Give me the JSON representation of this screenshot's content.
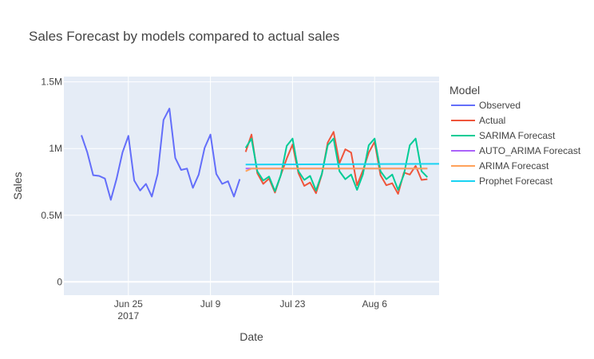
{
  "chart_data": {
    "type": "line",
    "title": "Sales Forecast by models compared to actual sales",
    "xlabel": "Date",
    "ylabel": "Sales",
    "legend_title": "Model",
    "legend_position": "right",
    "grid": true,
    "colors": {
      "plot_bg": "#E5ECF6",
      "grid": "#ffffff",
      "text": "#444444"
    },
    "x_range": [
      "2017-06-14",
      "2017-08-17"
    ],
    "y_range": [
      -100000,
      1540000
    ],
    "x_ticks": [
      {
        "date": "2017-06-25",
        "label": "Jun 25",
        "sub": "2017"
      },
      {
        "date": "2017-07-09",
        "label": "Jul 9",
        "sub": ""
      },
      {
        "date": "2017-07-23",
        "label": "Jul 23",
        "sub": ""
      },
      {
        "date": "2017-08-06",
        "label": "Aug 6",
        "sub": ""
      }
    ],
    "y_ticks": [
      {
        "value": 0,
        "label": "0"
      },
      {
        "value": 500000,
        "label": "0.5M"
      },
      {
        "value": 1000000,
        "label": "1M"
      },
      {
        "value": 1500000,
        "label": "1.5M"
      }
    ],
    "series": [
      {
        "name": "Observed",
        "color": "#636EFA",
        "start": "2017-06-17",
        "values": [
          1100000,
          970000,
          800000,
          795000,
          775000,
          615000,
          775000,
          970000,
          1095000,
          760000,
          685000,
          735000,
          640000,
          810000,
          1215000,
          1300000,
          930000,
          840000,
          850000,
          705000,
          805000,
          1005000,
          1105000,
          810000,
          735000,
          755000,
          640000,
          770000
        ]
      },
      {
        "name": "Actual",
        "color": "#EF553B",
        "start": "2017-07-15",
        "values": [
          975000,
          1105000,
          815000,
          735000,
          775000,
          670000,
          800000,
          925000,
          1030000,
          815000,
          720000,
          745000,
          665000,
          805000,
          1045000,
          1125000,
          890000,
          995000,
          970000,
          725000,
          835000,
          970000,
          1050000,
          800000,
          725000,
          740000,
          660000,
          820000,
          805000,
          870000,
          765000,
          770000
        ]
      },
      {
        "name": "SARIMA Forecast",
        "color": "#00CC96",
        "start": "2017-07-15",
        "values": [
          1005000,
          1075000,
          830000,
          760000,
          790000,
          680000,
          800000,
          1020000,
          1075000,
          830000,
          765000,
          795000,
          685000,
          810000,
          1025000,
          1075000,
          830000,
          770000,
          805000,
          690000,
          805000,
          1025000,
          1075000,
          830000,
          770000,
          805000,
          690000,
          805000,
          1025000,
          1075000,
          830000,
          785000
        ]
      },
      {
        "name": "AUTO_ARIMA Forecast",
        "color": "#AB63FA",
        "start": "2017-07-15",
        "end": "2017-08-15",
        "values": [
          850000,
          850000
        ]
      },
      {
        "name": "ARIMA Forecast",
        "color": "#FFA15A",
        "start": "2017-07-15",
        "values": [
          830000,
          850000,
          850000,
          850000,
          850000,
          850000,
          850000,
          850000,
          850000,
          850000,
          850000,
          850000,
          850000,
          850000,
          850000,
          850000,
          850000,
          850000,
          850000,
          850000,
          850000,
          850000,
          850000,
          850000,
          850000,
          850000,
          850000,
          850000,
          850000,
          850000,
          850000,
          850000
        ]
      },
      {
        "name": "Prophet Forecast",
        "color": "#19D3F3",
        "start": "2017-07-15",
        "end": "2017-08-17",
        "values": [
          880000,
          885000
        ]
      }
    ]
  }
}
